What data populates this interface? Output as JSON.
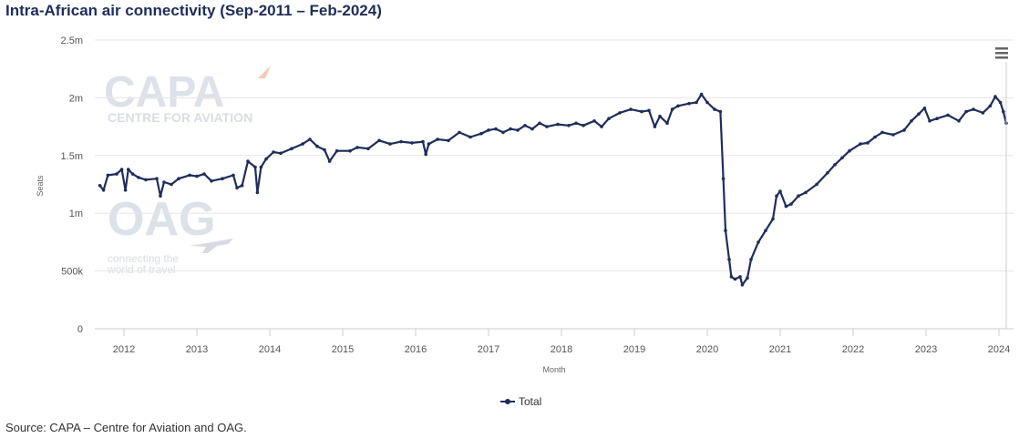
{
  "title": "Intra-African air connectivity (Sep-2011 – Feb-2024)",
  "source": "Source: CAPA – Centre for Aviation and OAG.",
  "menu_icon": "hamburger-menu-icon",
  "watermarks": {
    "capa_logo": "CAPA",
    "capa_tagline": "CENTRE FOR AVIATION",
    "oag_logo": "OAG",
    "oag_tagline_1": "connecting the",
    "oag_tagline_2": "world of travel"
  },
  "colors": {
    "series": "#1f2d5c",
    "grid": "#e6e6e6",
    "title": "#1f2d5c"
  },
  "chart_data": {
    "type": "line",
    "title": "Intra-African air connectivity (Sep-2011 – Feb-2024)",
    "xlabel": "Month",
    "ylabel": "Seats",
    "xlim": [
      2011.6,
      2024.2
    ],
    "ylim": [
      0,
      2500000
    ],
    "yticks": [
      0,
      500000,
      1000000,
      1500000,
      2000000,
      2500000
    ],
    "ytick_labels": [
      "0",
      "500k",
      "1m",
      "1.5m",
      "2m",
      "2.5m"
    ],
    "xticks": [
      2012,
      2013,
      2014,
      2015,
      2016,
      2017,
      2018,
      2019,
      2020,
      2021,
      2022,
      2023,
      2024
    ],
    "xtick_labels": [
      "2012",
      "2013",
      "2014",
      "2015",
      "2016",
      "2017",
      "2018",
      "2019",
      "2020",
      "2021",
      "2022",
      "2023",
      "2024"
    ],
    "grid": true,
    "legend_position": "bottom-center",
    "series": [
      {
        "name": "Total",
        "color": "#1f2d5c",
        "points": [
          [
            2011.67,
            1240000
          ],
          [
            2011.72,
            1200000
          ],
          [
            2011.78,
            1330000
          ],
          [
            2011.9,
            1340000
          ],
          [
            2011.97,
            1380000
          ],
          [
            2012.02,
            1200000
          ],
          [
            2012.06,
            1380000
          ],
          [
            2012.12,
            1340000
          ],
          [
            2012.2,
            1310000
          ],
          [
            2012.3,
            1290000
          ],
          [
            2012.45,
            1300000
          ],
          [
            2012.5,
            1150000
          ],
          [
            2012.55,
            1270000
          ],
          [
            2012.65,
            1250000
          ],
          [
            2012.75,
            1300000
          ],
          [
            2012.9,
            1330000
          ],
          [
            2013.0,
            1320000
          ],
          [
            2013.1,
            1340000
          ],
          [
            2013.2,
            1280000
          ],
          [
            2013.35,
            1300000
          ],
          [
            2013.5,
            1330000
          ],
          [
            2013.55,
            1220000
          ],
          [
            2013.62,
            1240000
          ],
          [
            2013.7,
            1450000
          ],
          [
            2013.8,
            1400000
          ],
          [
            2013.83,
            1180000
          ],
          [
            2013.88,
            1400000
          ],
          [
            2013.95,
            1470000
          ],
          [
            2014.05,
            1530000
          ],
          [
            2014.15,
            1520000
          ],
          [
            2014.3,
            1560000
          ],
          [
            2014.45,
            1600000
          ],
          [
            2014.55,
            1640000
          ],
          [
            2014.65,
            1580000
          ],
          [
            2014.75,
            1550000
          ],
          [
            2014.82,
            1450000
          ],
          [
            2014.92,
            1540000
          ],
          [
            2015.1,
            1540000
          ],
          [
            2015.2,
            1570000
          ],
          [
            2015.35,
            1560000
          ],
          [
            2015.5,
            1630000
          ],
          [
            2015.65,
            1600000
          ],
          [
            2015.8,
            1620000
          ],
          [
            2015.95,
            1610000
          ],
          [
            2016.1,
            1620000
          ],
          [
            2016.14,
            1510000
          ],
          [
            2016.18,
            1600000
          ],
          [
            2016.3,
            1640000
          ],
          [
            2016.45,
            1630000
          ],
          [
            2016.6,
            1700000
          ],
          [
            2016.75,
            1660000
          ],
          [
            2016.9,
            1690000
          ],
          [
            2017.0,
            1720000
          ],
          [
            2017.1,
            1730000
          ],
          [
            2017.2,
            1700000
          ],
          [
            2017.3,
            1730000
          ],
          [
            2017.4,
            1720000
          ],
          [
            2017.5,
            1760000
          ],
          [
            2017.6,
            1730000
          ],
          [
            2017.7,
            1780000
          ],
          [
            2017.8,
            1750000
          ],
          [
            2017.95,
            1770000
          ],
          [
            2018.1,
            1760000
          ],
          [
            2018.2,
            1780000
          ],
          [
            2018.3,
            1760000
          ],
          [
            2018.45,
            1800000
          ],
          [
            2018.55,
            1750000
          ],
          [
            2018.65,
            1820000
          ],
          [
            2018.8,
            1870000
          ],
          [
            2018.95,
            1900000
          ],
          [
            2019.1,
            1880000
          ],
          [
            2019.2,
            1890000
          ],
          [
            2019.28,
            1750000
          ],
          [
            2019.35,
            1840000
          ],
          [
            2019.45,
            1780000
          ],
          [
            2019.52,
            1900000
          ],
          [
            2019.6,
            1930000
          ],
          [
            2019.75,
            1950000
          ],
          [
            2019.85,
            1960000
          ],
          [
            2019.92,
            2030000
          ],
          [
            2020.0,
            1960000
          ],
          [
            2020.1,
            1900000
          ],
          [
            2020.18,
            1880000
          ],
          [
            2020.22,
            1300000
          ],
          [
            2020.25,
            850000
          ],
          [
            2020.3,
            600000
          ],
          [
            2020.33,
            450000
          ],
          [
            2020.38,
            430000
          ],
          [
            2020.45,
            450000
          ],
          [
            2020.48,
            380000
          ],
          [
            2020.55,
            440000
          ],
          [
            2020.6,
            600000
          ],
          [
            2020.7,
            750000
          ],
          [
            2020.8,
            850000
          ],
          [
            2020.9,
            950000
          ],
          [
            2020.95,
            1150000
          ],
          [
            2021.0,
            1190000
          ],
          [
            2021.08,
            1060000
          ],
          [
            2021.15,
            1080000
          ],
          [
            2021.25,
            1150000
          ],
          [
            2021.35,
            1180000
          ],
          [
            2021.5,
            1250000
          ],
          [
            2021.65,
            1350000
          ],
          [
            2021.75,
            1420000
          ],
          [
            2021.85,
            1480000
          ],
          [
            2021.95,
            1540000
          ],
          [
            2022.1,
            1600000
          ],
          [
            2022.2,
            1610000
          ],
          [
            2022.3,
            1660000
          ],
          [
            2022.4,
            1700000
          ],
          [
            2022.55,
            1680000
          ],
          [
            2022.7,
            1720000
          ],
          [
            2022.8,
            1800000
          ],
          [
            2022.9,
            1860000
          ],
          [
            2022.98,
            1910000
          ],
          [
            2023.05,
            1800000
          ],
          [
            2023.15,
            1820000
          ],
          [
            2023.3,
            1850000
          ],
          [
            2023.45,
            1800000
          ],
          [
            2023.55,
            1880000
          ],
          [
            2023.65,
            1900000
          ],
          [
            2023.78,
            1870000
          ],
          [
            2023.88,
            1930000
          ],
          [
            2023.95,
            2010000
          ],
          [
            2024.02,
            1960000
          ],
          [
            2024.06,
            1880000
          ],
          [
            2024.1,
            1780000
          ]
        ]
      }
    ]
  }
}
